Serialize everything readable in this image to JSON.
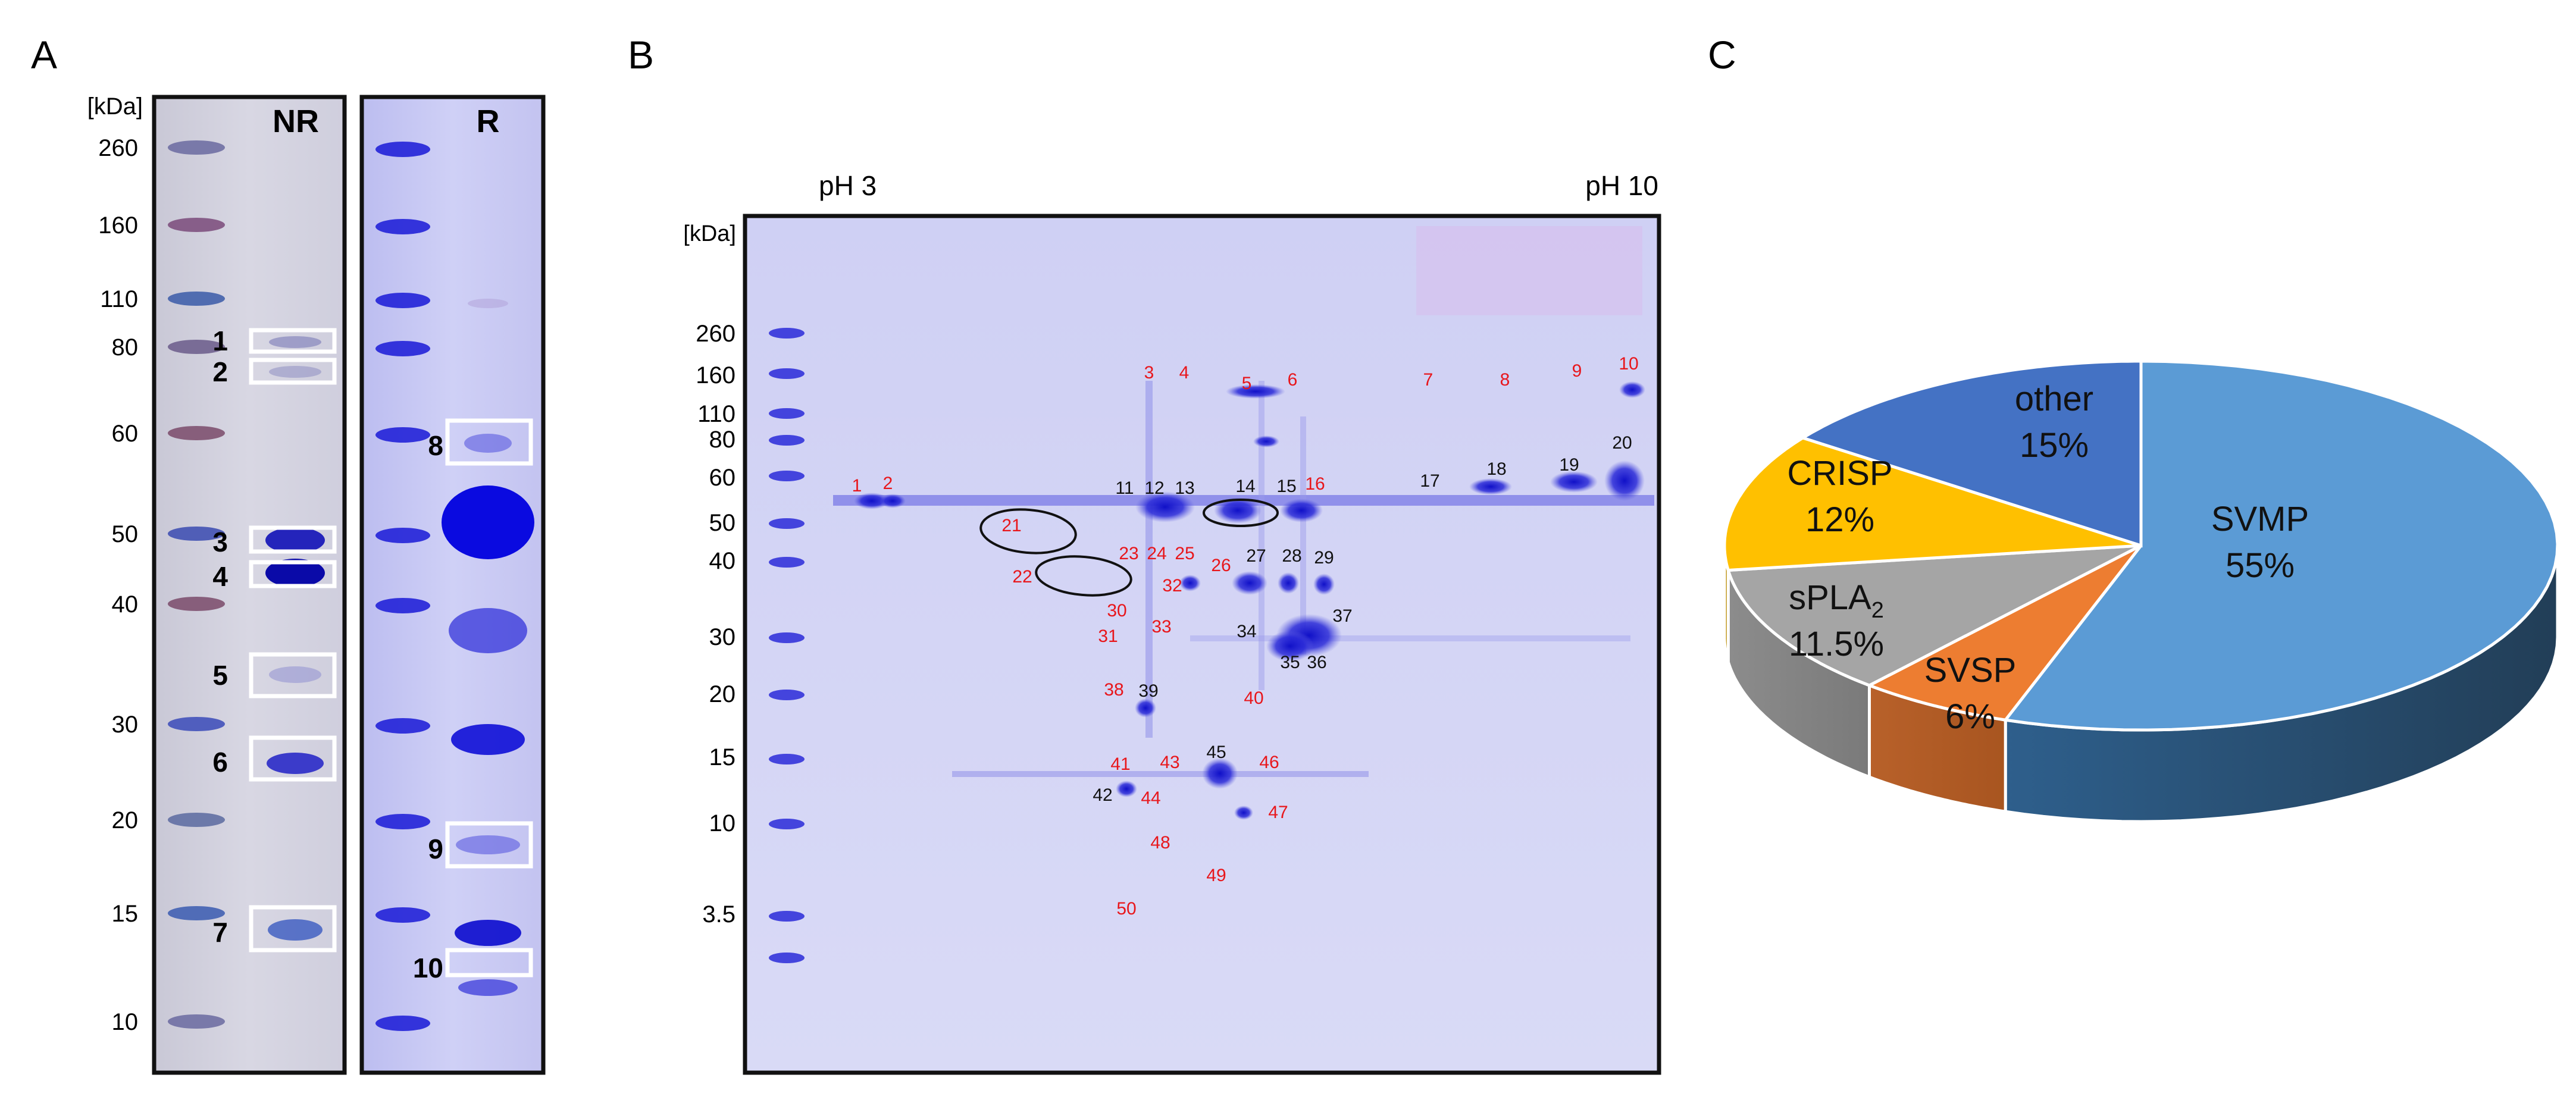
{
  "panels": {
    "a": "A",
    "b": "B",
    "c": "C"
  },
  "panel_a": {
    "unit": "[kDa]",
    "markers": [
      "260",
      "160",
      "110",
      "80",
      "60",
      "50",
      "40",
      "30",
      "20",
      "15",
      "10"
    ],
    "lane_nr": "NR",
    "lane_r": "R",
    "bands_nr": [
      "1",
      "2",
      "3",
      "4",
      "5",
      "6",
      "7"
    ],
    "bands_r": [
      "8",
      "9",
      "10"
    ]
  },
  "panel_b": {
    "unit": "[kDa]",
    "ph_left": "pH 3",
    "ph_right": "pH 10",
    "markers": [
      "260",
      "160",
      "110",
      "80",
      "60",
      "50",
      "40",
      "30",
      "20",
      "15",
      "10",
      "3.5"
    ],
    "spots": [
      "1",
      "2",
      "3",
      "4",
      "5",
      "6",
      "7",
      "8",
      "9",
      "10",
      "11",
      "12",
      "13",
      "14",
      "15",
      "16",
      "17",
      "18",
      "19",
      "20",
      "21",
      "22",
      "23",
      "24",
      "25",
      "26",
      "27",
      "28",
      "29",
      "30",
      "31",
      "32",
      "33",
      "34",
      "35",
      "36",
      "37",
      "38",
      "39",
      "40",
      "41",
      "42",
      "43",
      "44",
      "45",
      "46",
      "47",
      "48",
      "49",
      "50"
    ],
    "colors": {
      "red": "#e8161b",
      "black": "#111111",
      "stain": "#1a1ad8"
    }
  },
  "panel_c": {
    "slices": [
      {
        "name": "SVMP",
        "pct": "55%",
        "value": 55,
        "color": "#5b9bd5"
      },
      {
        "name": "SVSP",
        "pct": "6%",
        "value": 6,
        "color": "#ed7d31"
      },
      {
        "name": "sPLA",
        "sub": "2",
        "pct": "11.5%",
        "value": 11.5,
        "color": "#a5a5a5"
      },
      {
        "name": "CRISP",
        "pct": "12%",
        "value": 12,
        "color": "#ffc000"
      },
      {
        "name": "other",
        "pct": "15%",
        "value": 15,
        "color": "#4472c4"
      }
    ]
  }
}
